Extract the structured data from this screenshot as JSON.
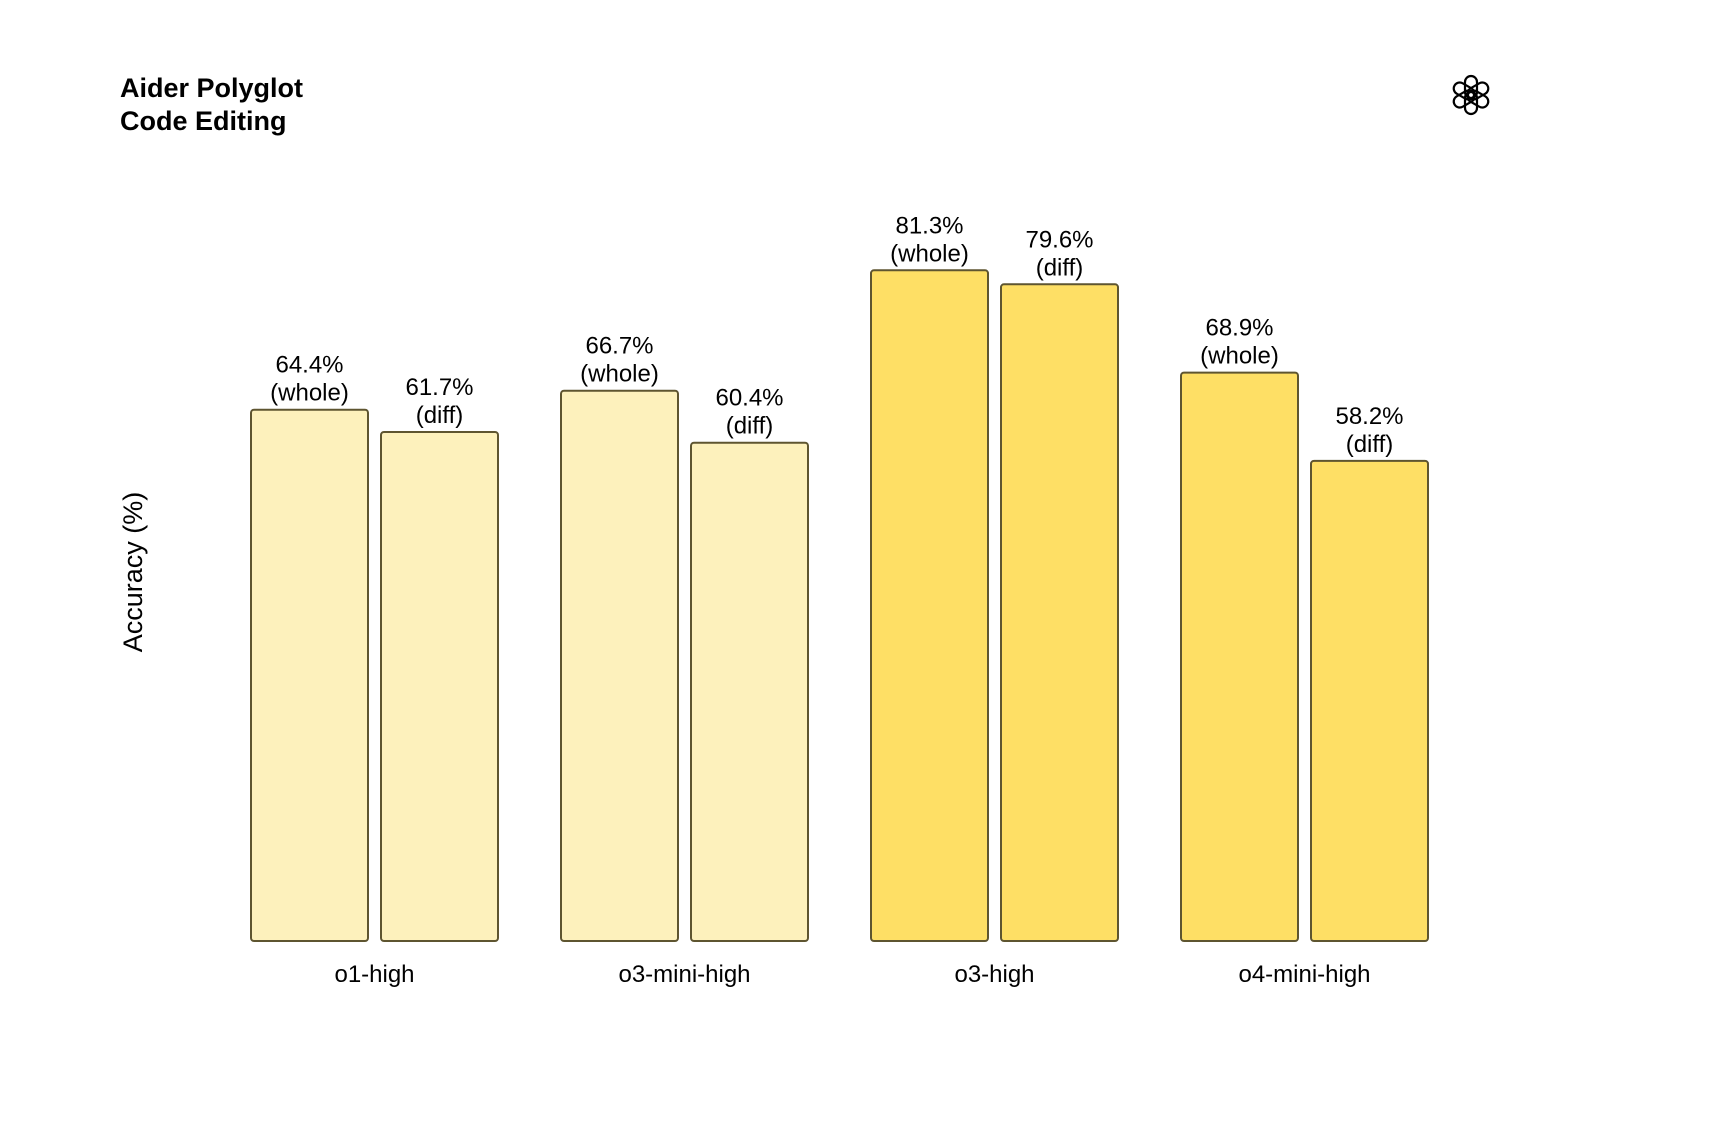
{
  "chart_data": {
    "type": "bar",
    "title": [
      "Aider Polyglot",
      "Code Editing"
    ],
    "xlabel": "",
    "ylabel": "Accuracy (%)",
    "ylim": [
      0,
      100
    ],
    "grid": false,
    "categories": [
      "o1-high",
      "o3-mini-high",
      "o3-high",
      "o4-mini-high"
    ],
    "series": [
      {
        "values": [
          64.4,
          66.7,
          81.3,
          68.9
        ],
        "labels": [
          [
            "64.4%",
            "(whole)"
          ],
          [
            "66.7%",
            "(whole)"
          ],
          [
            "81.3%",
            "(whole)"
          ],
          [
            "68.9%",
            "(whole)"
          ]
        ]
      },
      {
        "values": [
          61.7,
          60.4,
          79.6,
          58.2
        ],
        "labels": [
          [
            "61.7%",
            "(diff)"
          ],
          [
            "60.4%",
            "(diff)"
          ],
          [
            "79.6%",
            "(diff)"
          ],
          [
            "58.2%",
            "(diff)"
          ]
        ]
      }
    ],
    "bar_colors": [
      "#FDF1BC",
      "#FDF1BC",
      "#FEDF65",
      "#FEDF65"
    ],
    "bar_stroke": "#5E5530"
  },
  "logo": {
    "icon": "openai-logo-icon"
  }
}
